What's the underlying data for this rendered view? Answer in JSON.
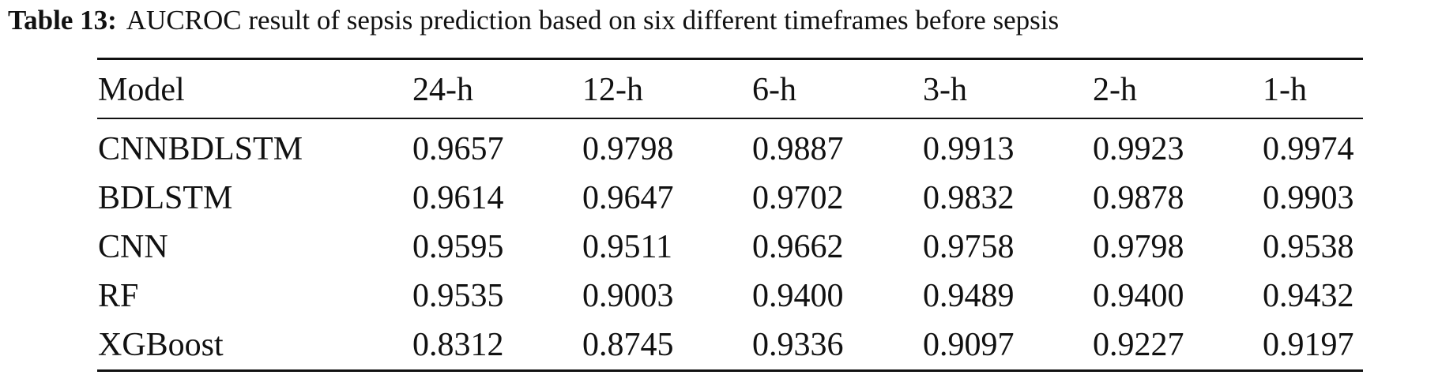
{
  "caption": {
    "label": "Table 13:",
    "text": "AUCROC result of sepsis prediction based on six different timeframes before sepsis"
  },
  "table": {
    "header": [
      "Model",
      "24-h",
      "12-h",
      "6-h",
      "3-h",
      "2-h",
      "1-h"
    ],
    "rows": [
      [
        "CNNBDLSTM",
        "0.9657",
        "0.9798",
        "0.9887",
        "0.9913",
        "0.9923",
        "0.9974"
      ],
      [
        "BDLSTM",
        "0.9614",
        "0.9647",
        "0.9702",
        "0.9832",
        "0.9878",
        "0.9903"
      ],
      [
        "CNN",
        "0.9595",
        "0.9511",
        "0.9662",
        "0.9758",
        "0.9798",
        "0.9538"
      ],
      [
        "RF",
        "0.9535",
        "0.9003",
        "0.9400",
        "0.9489",
        "0.9400",
        "0.9432"
      ],
      [
        "XGBoost",
        "0.8312",
        "0.8745",
        "0.9336",
        "0.9097",
        "0.9227",
        "0.9197"
      ]
    ]
  }
}
